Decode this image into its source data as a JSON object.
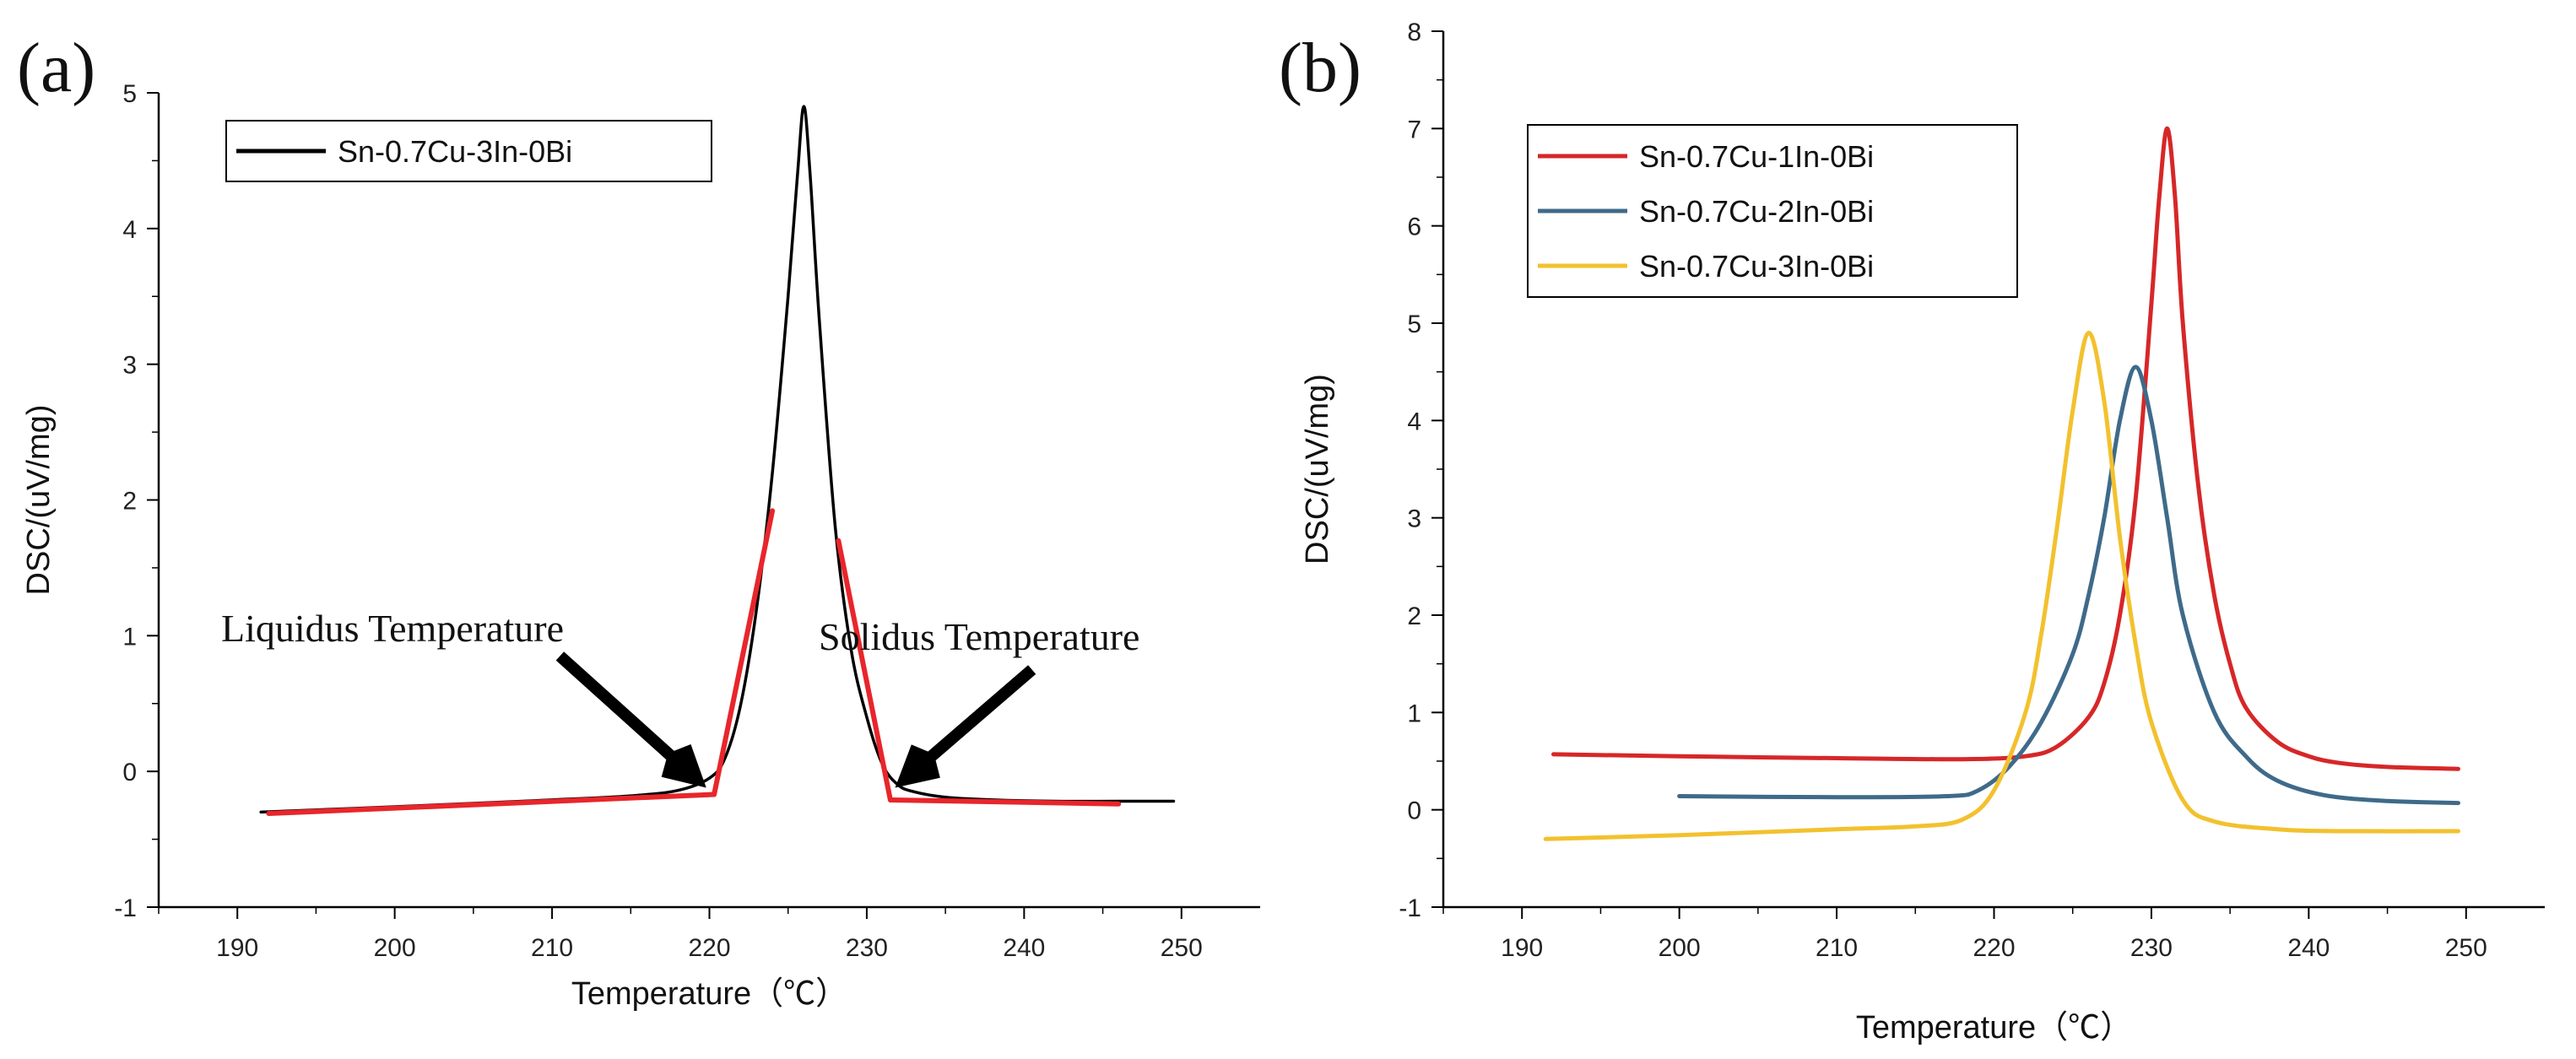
{
  "chart_data": [
    {
      "panel_label": "(a)",
      "type": "line",
      "xlabel": "Temperature（℃）",
      "ylabel": "DSC/(uV/mg)",
      "xlim": [
        185,
        255
      ],
      "ylim": [
        -1,
        5
      ],
      "xticks": [
        "190",
        "200",
        "210",
        "220",
        "230",
        "240",
        "250"
      ],
      "yticks": [
        "-1",
        "0",
        "1",
        "2",
        "3",
        "4",
        "5"
      ],
      "legend": [
        "Sn-0.7Cu-3In-0Bi"
      ],
      "legend_position": "top-left",
      "series": [
        {
          "name": "Sn-0.7Cu-3In-0Bi",
          "color": "#000000",
          "x": [
            191.5,
            200,
            210,
            215,
            218,
            220,
            221,
            222,
            223,
            224,
            225,
            225.6,
            226,
            226.4,
            227,
            228,
            229,
            230,
            231,
            232,
            233,
            235,
            238,
            242,
            246,
            249.5
          ],
          "y": [
            -0.3,
            -0.26,
            -0.21,
            -0.18,
            -0.14,
            -0.05,
            0.1,
            0.5,
            1.2,
            2.2,
            3.5,
            4.4,
            4.9,
            4.4,
            3.3,
            1.8,
            0.9,
            0.4,
            0.05,
            -0.1,
            -0.15,
            -0.19,
            -0.21,
            -0.22,
            -0.22,
            -0.22
          ]
        }
      ],
      "tangent_lines": [
        {
          "x": [
            192,
            220.3
          ],
          "y": [
            -0.31,
            -0.17
          ],
          "color": "#e8262b"
        },
        {
          "x": [
            220.3,
            224
          ],
          "y": [
            -0.17,
            1.92
          ],
          "color": "#e8262b"
        },
        {
          "x": [
            228.2,
            231.5
          ],
          "y": [
            1.7,
            -0.21
          ],
          "color": "#e8262b"
        },
        {
          "x": [
            231.5,
            246
          ],
          "y": [
            -0.21,
            -0.24
          ],
          "color": "#e8262b"
        }
      ],
      "annotations": [
        {
          "text": "Liquidus Temperature",
          "arrow_tip": [
            219.8,
            -0.12
          ],
          "arrow_tail": [
            210.5,
            0.85
          ]
        },
        {
          "text": "Solidus Temperature",
          "arrow_tip": [
            231.8,
            -0.12
          ],
          "arrow_tail": [
            240.5,
            0.75
          ]
        }
      ]
    },
    {
      "panel_label": "(b)",
      "type": "line",
      "xlabel": "Temperature（℃）",
      "ylabel": "DSC/(uV/mg)",
      "xlim": [
        185,
        255
      ],
      "ylim": [
        -1,
        8
      ],
      "xticks": [
        "190",
        "200",
        "210",
        "220",
        "230",
        "240",
        "250"
      ],
      "yticks": [
        "-1",
        "0",
        "1",
        "2",
        "3",
        "4",
        "5",
        "6",
        "7",
        "8"
      ],
      "legend": [
        "Sn-0.7Cu-1In-0Bi",
        "Sn-0.7Cu-2In-0Bi",
        "Sn-0.7Cu-3In-0Bi"
      ],
      "legend_position": "top-left",
      "series": [
        {
          "name": "Sn-0.7Cu-1In-0Bi",
          "color": "#d62728",
          "x": [
            192,
            200,
            210,
            218,
            222,
            224,
            226,
            227,
            228,
            229,
            230,
            230.5,
            231,
            231.5,
            232,
            233,
            234,
            235,
            236,
            238,
            240,
            242,
            245,
            249.5
          ],
          "y": [
            0.57,
            0.55,
            0.53,
            0.52,
            0.55,
            0.65,
            0.95,
            1.3,
            2.0,
            3.2,
            5.2,
            6.3,
            7.0,
            6.3,
            5.0,
            3.3,
            2.2,
            1.5,
            1.05,
            0.7,
            0.55,
            0.48,
            0.44,
            0.42
          ]
        },
        {
          "name": "Sn-0.7Cu-2In-0Bi",
          "color": "#3f6a8a",
          "x": [
            200,
            210,
            217,
            219,
            221,
            223,
            225,
            226,
            227,
            228,
            229,
            230,
            231,
            232,
            234,
            236,
            238,
            241,
            245,
            249.5
          ],
          "y": [
            0.14,
            0.13,
            0.14,
            0.2,
            0.45,
            0.9,
            1.6,
            2.2,
            3.0,
            4.0,
            4.55,
            4.0,
            3.0,
            2.0,
            1.0,
            0.55,
            0.3,
            0.15,
            0.09,
            0.07
          ]
        },
        {
          "name": "Sn-0.7Cu-3In-0Bi",
          "color": "#f2c12e",
          "x": [
            191.5,
            200,
            210,
            215,
            218,
            220,
            222,
            223,
            224,
            225,
            226,
            227,
            228,
            229,
            230,
            232,
            234,
            238,
            242,
            249.5
          ],
          "y": [
            -0.3,
            -0.26,
            -0.2,
            -0.17,
            -0.1,
            0.2,
            1.0,
            1.8,
            2.9,
            4.1,
            4.9,
            4.2,
            2.8,
            1.7,
            0.9,
            0.1,
            -0.12,
            -0.2,
            -0.22,
            -0.22
          ]
        }
      ]
    }
  ]
}
